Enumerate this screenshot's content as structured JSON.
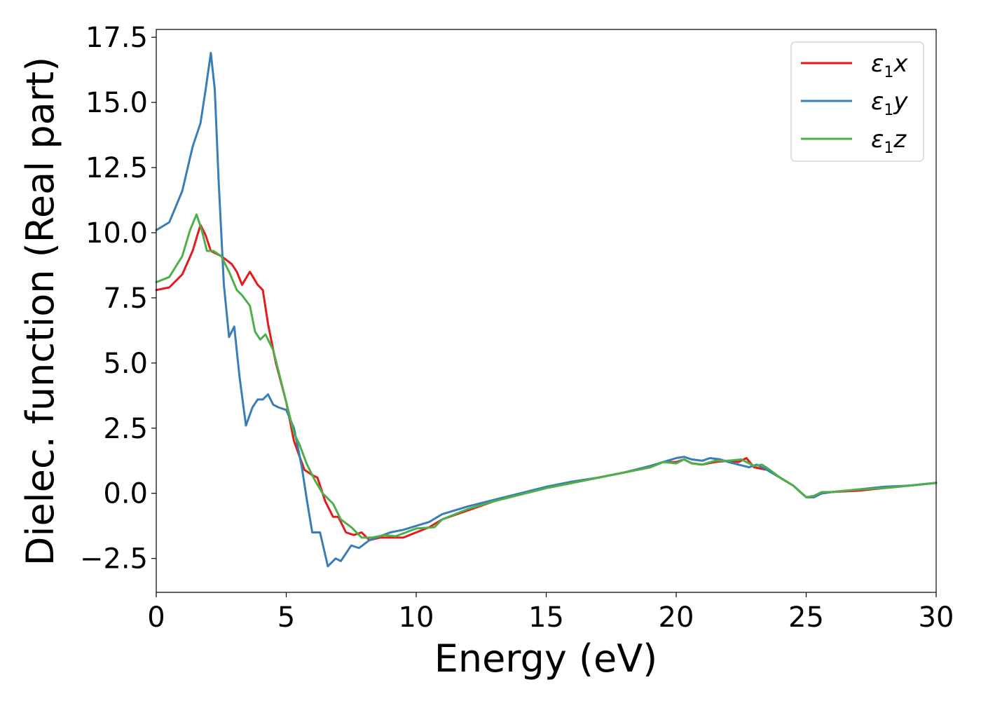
{
  "chart_data": {
    "type": "line",
    "title": "",
    "xlabel": "Energy (eV)",
    "ylabel": "Dielec. function (Real part)",
    "xlim": [
      0,
      30
    ],
    "ylim": [
      -3.8,
      17.8
    ],
    "xticks": [
      0,
      5,
      10,
      15,
      20,
      25,
      30
    ],
    "xtick_labels": [
      "0",
      "5",
      "10",
      "15",
      "20",
      "25",
      "30"
    ],
    "yticks": [
      -2.5,
      0.0,
      2.5,
      5.0,
      7.5,
      10.0,
      12.5,
      15.0,
      17.5
    ],
    "ytick_labels": [
      "−2.5",
      "0.0",
      "2.5",
      "5.0",
      "7.5",
      "10.0",
      "12.5",
      "15.0",
      "17.5"
    ],
    "grid": false,
    "legend_position": "top-right",
    "series": [
      {
        "name": "ε1x",
        "symbol": "ε",
        "subscript": "1",
        "suffix": "x",
        "color": "#e41a1c",
        "points": [
          [
            0,
            7.8
          ],
          [
            0.5,
            7.9
          ],
          [
            1.0,
            8.4
          ],
          [
            1.4,
            9.3
          ],
          [
            1.7,
            10.3
          ],
          [
            1.9,
            9.9
          ],
          [
            2.1,
            9.3
          ],
          [
            2.5,
            9.1
          ],
          [
            2.9,
            8.8
          ],
          [
            3.1,
            8.5
          ],
          [
            3.3,
            8.0
          ],
          [
            3.6,
            8.5
          ],
          [
            3.9,
            8.0
          ],
          [
            4.1,
            7.8
          ],
          [
            4.3,
            6.5
          ],
          [
            4.6,
            5.0
          ],
          [
            5.0,
            3.5
          ],
          [
            5.3,
            2.0
          ],
          [
            5.7,
            0.9
          ],
          [
            6.0,
            0.7
          ],
          [
            6.2,
            0.6
          ],
          [
            6.5,
            -0.3
          ],
          [
            6.8,
            -0.9
          ],
          [
            7.0,
            -0.9
          ],
          [
            7.3,
            -1.5
          ],
          [
            7.6,
            -1.6
          ],
          [
            7.9,
            -1.5
          ],
          [
            8.2,
            -1.8
          ],
          [
            8.6,
            -1.7
          ],
          [
            9.0,
            -1.7
          ],
          [
            9.5,
            -1.7
          ],
          [
            10.0,
            -1.5
          ],
          [
            10.5,
            -1.3
          ],
          [
            11.0,
            -1.0
          ],
          [
            12.0,
            -0.65
          ],
          [
            13.0,
            -0.3
          ],
          [
            14.0,
            -0.05
          ],
          [
            15.0,
            0.2
          ],
          [
            16.0,
            0.4
          ],
          [
            17.0,
            0.6
          ],
          [
            18.0,
            0.8
          ],
          [
            19.0,
            1.0
          ],
          [
            19.5,
            1.2
          ],
          [
            20.0,
            1.2
          ],
          [
            20.3,
            1.3
          ],
          [
            20.6,
            1.15
          ],
          [
            21.0,
            1.1
          ],
          [
            21.5,
            1.2
          ],
          [
            22.0,
            1.25
          ],
          [
            22.4,
            1.2
          ],
          [
            22.7,
            1.35
          ],
          [
            23.0,
            1.0
          ],
          [
            23.5,
            0.9
          ],
          [
            24.0,
            0.6
          ],
          [
            24.5,
            0.3
          ],
          [
            25.0,
            -0.15
          ],
          [
            25.3,
            -0.15
          ],
          [
            25.6,
            0.0
          ],
          [
            26.0,
            0.05
          ],
          [
            27.0,
            0.1
          ],
          [
            28.0,
            0.2
          ],
          [
            29.0,
            0.3
          ],
          [
            30.0,
            0.4
          ]
        ]
      },
      {
        "name": "ε1y",
        "symbol": "ε",
        "subscript": "1",
        "suffix": "y",
        "color": "#377eb8",
        "points": [
          [
            0,
            10.1
          ],
          [
            0.5,
            10.4
          ],
          [
            1.0,
            11.6
          ],
          [
            1.4,
            13.3
          ],
          [
            1.7,
            14.2
          ],
          [
            1.9,
            15.5
          ],
          [
            2.1,
            16.9
          ],
          [
            2.25,
            15.5
          ],
          [
            2.4,
            12.0
          ],
          [
            2.6,
            8.0
          ],
          [
            2.8,
            6.0
          ],
          [
            3.0,
            6.4
          ],
          [
            3.2,
            4.5
          ],
          [
            3.45,
            2.6
          ],
          [
            3.7,
            3.3
          ],
          [
            3.9,
            3.6
          ],
          [
            4.1,
            3.6
          ],
          [
            4.3,
            3.8
          ],
          [
            4.5,
            3.4
          ],
          [
            4.7,
            3.3
          ],
          [
            5.0,
            3.2
          ],
          [
            5.3,
            2.5
          ],
          [
            5.6,
            1.0
          ],
          [
            5.8,
            -0.3
          ],
          [
            6.0,
            -1.5
          ],
          [
            6.3,
            -1.5
          ],
          [
            6.6,
            -2.8
          ],
          [
            6.9,
            -2.5
          ],
          [
            7.1,
            -2.6
          ],
          [
            7.5,
            -2.0
          ],
          [
            7.8,
            -2.1
          ],
          [
            8.2,
            -1.8
          ],
          [
            9.0,
            -1.5
          ],
          [
            9.5,
            -1.4
          ],
          [
            10.0,
            -1.25
          ],
          [
            10.5,
            -1.1
          ],
          [
            11.0,
            -0.8
          ],
          [
            12.0,
            -0.5
          ],
          [
            13.0,
            -0.25
          ],
          [
            14.0,
            0.0
          ],
          [
            15.0,
            0.25
          ],
          [
            16.0,
            0.45
          ],
          [
            17.0,
            0.6
          ],
          [
            18.0,
            0.8
          ],
          [
            19.0,
            1.05
          ],
          [
            19.5,
            1.2
          ],
          [
            20.0,
            1.35
          ],
          [
            20.3,
            1.4
          ],
          [
            20.6,
            1.3
          ],
          [
            21.0,
            1.25
          ],
          [
            21.3,
            1.35
          ],
          [
            21.7,
            1.3
          ],
          [
            22.0,
            1.2
          ],
          [
            22.4,
            1.1
          ],
          [
            22.8,
            1.0
          ],
          [
            23.1,
            1.1
          ],
          [
            23.5,
            0.9
          ],
          [
            24.0,
            0.6
          ],
          [
            24.5,
            0.3
          ],
          [
            25.0,
            -0.15
          ],
          [
            25.3,
            -0.15
          ],
          [
            25.6,
            0.0
          ],
          [
            26.0,
            0.05
          ],
          [
            27.0,
            0.15
          ],
          [
            28.0,
            0.25
          ],
          [
            29.0,
            0.3
          ],
          [
            30.0,
            0.4
          ]
        ]
      },
      {
        "name": "ε1z",
        "symbol": "ε",
        "subscript": "1",
        "suffix": "z",
        "color": "#4daf4a",
        "points": [
          [
            0,
            8.1
          ],
          [
            0.5,
            8.3
          ],
          [
            1.0,
            9.1
          ],
          [
            1.3,
            10.1
          ],
          [
            1.55,
            10.7
          ],
          [
            1.75,
            10.1
          ],
          [
            1.95,
            9.3
          ],
          [
            2.2,
            9.3
          ],
          [
            2.5,
            9.1
          ],
          [
            2.8,
            8.5
          ],
          [
            3.1,
            7.8
          ],
          [
            3.3,
            7.6
          ],
          [
            3.6,
            7.2
          ],
          [
            3.8,
            6.2
          ],
          [
            4.0,
            5.9
          ],
          [
            4.2,
            6.1
          ],
          [
            4.5,
            5.5
          ],
          [
            4.8,
            4.3
          ],
          [
            5.0,
            3.5
          ],
          [
            5.3,
            2.3
          ],
          [
            5.5,
            1.9
          ],
          [
            5.8,
            1.1
          ],
          [
            6.1,
            0.5
          ],
          [
            6.4,
            0.0
          ],
          [
            6.8,
            -0.4
          ],
          [
            7.1,
            -1.0
          ],
          [
            7.5,
            -1.3
          ],
          [
            7.9,
            -1.7
          ],
          [
            8.3,
            -1.7
          ],
          [
            8.8,
            -1.6
          ],
          [
            9.2,
            -1.65
          ],
          [
            9.6,
            -1.5
          ],
          [
            10.0,
            -1.35
          ],
          [
            10.7,
            -1.3
          ],
          [
            11.0,
            -1.0
          ],
          [
            12.0,
            -0.6
          ],
          [
            13.0,
            -0.3
          ],
          [
            14.0,
            -0.05
          ],
          [
            15.0,
            0.2
          ],
          [
            16.0,
            0.4
          ],
          [
            17.0,
            0.6
          ],
          [
            18.0,
            0.8
          ],
          [
            19.0,
            1.0
          ],
          [
            19.5,
            1.2
          ],
          [
            20.0,
            1.15
          ],
          [
            20.3,
            1.3
          ],
          [
            20.6,
            1.15
          ],
          [
            21.0,
            1.1
          ],
          [
            21.5,
            1.25
          ],
          [
            22.0,
            1.25
          ],
          [
            22.5,
            1.3
          ],
          [
            23.0,
            1.05
          ],
          [
            23.3,
            1.1
          ],
          [
            23.6,
            0.9
          ],
          [
            24.0,
            0.6
          ],
          [
            24.5,
            0.3
          ],
          [
            25.0,
            -0.15
          ],
          [
            25.3,
            -0.1
          ],
          [
            25.6,
            0.05
          ],
          [
            26.0,
            0.05
          ],
          [
            27.0,
            0.15
          ],
          [
            28.0,
            0.2
          ],
          [
            29.0,
            0.3
          ],
          [
            30.0,
            0.4
          ]
        ]
      }
    ]
  }
}
